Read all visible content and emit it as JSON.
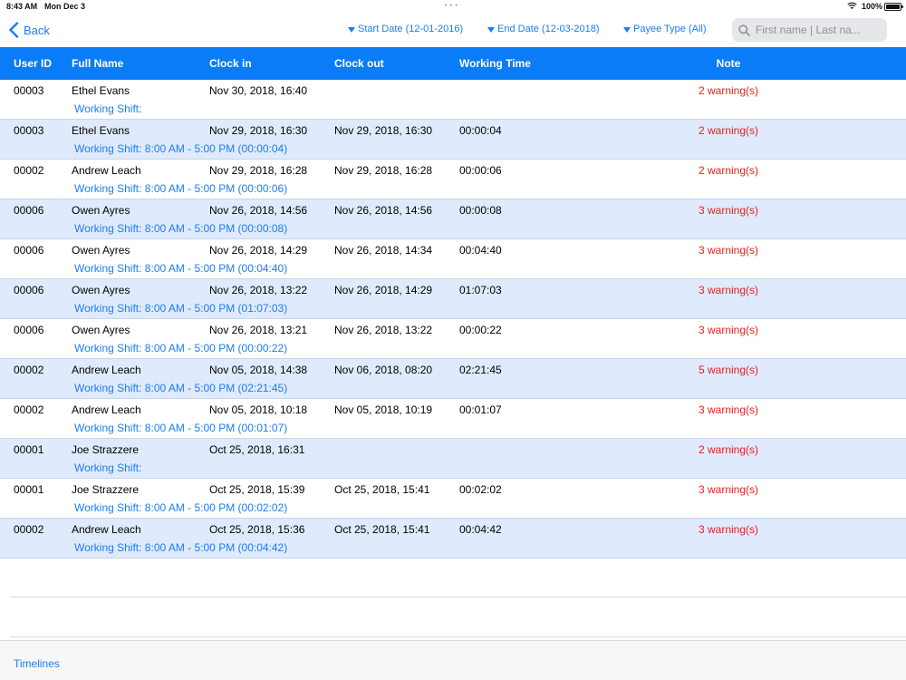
{
  "status_bar": {
    "time": "8:43 AM",
    "date": "Mon Dec 3",
    "battery": "100%"
  },
  "nav": {
    "back_label": "Back",
    "start_date": "Start Date (12-01-2016)",
    "end_date": "End Date (12-03-2018)",
    "payee_type": "Payee Type (All)",
    "search_placeholder": "First name | Last na..."
  },
  "table": {
    "columns": [
      "User ID",
      "Full Name",
      "Clock in",
      "Clock out",
      "Working Time",
      "Note"
    ],
    "rows": [
      {
        "user_id": "00003",
        "full_name": "Ethel Evans",
        "clock_in": "Nov 30, 2018, 16:40",
        "clock_out": "",
        "working_time": "",
        "note": "2 warning(s)",
        "shift": "Working Shift:"
      },
      {
        "user_id": "00003",
        "full_name": "Ethel Evans",
        "clock_in": "Nov 29, 2018, 16:30",
        "clock_out": "Nov 29, 2018, 16:30",
        "working_time": "00:00:04",
        "note": "2 warning(s)",
        "shift": "Working Shift:  8:00 AM - 5:00 PM (00:00:04)"
      },
      {
        "user_id": "00002",
        "full_name": "Andrew Leach",
        "clock_in": "Nov 29, 2018, 16:28",
        "clock_out": "Nov 29, 2018, 16:28",
        "working_time": "00:00:06",
        "note": "2 warning(s)",
        "shift": "Working Shift:  8:00 AM - 5:00 PM (00:00:06)"
      },
      {
        "user_id": "00006",
        "full_name": "Owen Ayres",
        "clock_in": "Nov 26, 2018, 14:56",
        "clock_out": "Nov 26, 2018, 14:56",
        "working_time": "00:00:08",
        "note": "3 warning(s)",
        "shift": "Working Shift:  8:00 AM - 5:00 PM (00:00:08)"
      },
      {
        "user_id": "00006",
        "full_name": "Owen Ayres",
        "clock_in": "Nov 26, 2018, 14:29",
        "clock_out": "Nov 26, 2018, 14:34",
        "working_time": "00:04:40",
        "note": "3 warning(s)",
        "shift": "Working Shift:  8:00 AM - 5:00 PM (00:04:40)"
      },
      {
        "user_id": "00006",
        "full_name": "Owen Ayres",
        "clock_in": "Nov 26, 2018, 13:22",
        "clock_out": "Nov 26, 2018, 14:29",
        "working_time": "01:07:03",
        "note": "3 warning(s)",
        "shift": "Working Shift:  8:00 AM - 5:00 PM (01:07:03)"
      },
      {
        "user_id": "00006",
        "full_name": "Owen Ayres",
        "clock_in": "Nov 26, 2018, 13:21",
        "clock_out": "Nov 26, 2018, 13:22",
        "working_time": "00:00:22",
        "note": "3 warning(s)",
        "shift": "Working Shift:  8:00 AM - 5:00 PM (00:00:22)"
      },
      {
        "user_id": "00002",
        "full_name": "Andrew Leach",
        "clock_in": "Nov 05, 2018, 14:38",
        "clock_out": "Nov 06, 2018, 08:20",
        "working_time": "02:21:45",
        "note": "5 warning(s)",
        "shift": "Working Shift:  8:00 AM - 5:00 PM (02:21:45)"
      },
      {
        "user_id": "00002",
        "full_name": "Andrew Leach",
        "clock_in": "Nov 05, 2018, 10:18",
        "clock_out": "Nov 05, 2018, 10:19",
        "working_time": "00:01:07",
        "note": "3 warning(s)",
        "shift": "Working Shift:  8:00 AM - 5:00 PM (00:01:07)"
      },
      {
        "user_id": "00001",
        "full_name": "Joe Strazzere",
        "clock_in": "Oct 25, 2018, 16:31",
        "clock_out": "",
        "working_time": "",
        "note": "2 warning(s)",
        "shift": "Working Shift:"
      },
      {
        "user_id": "00001",
        "full_name": "Joe Strazzere",
        "clock_in": "Oct 25, 2018, 15:39",
        "clock_out": "Oct 25, 2018, 15:41",
        "working_time": "00:02:02",
        "note": "3 warning(s)",
        "shift": "Working Shift:  8:00 AM - 5:00 PM (00:02:02)"
      },
      {
        "user_id": "00002",
        "full_name": "Andrew Leach",
        "clock_in": "Oct 25, 2018, 15:36",
        "clock_out": "Oct 25, 2018, 15:41",
        "working_time": "00:04:42",
        "note": "3 warning(s)",
        "shift": "Working Shift:  8:00 AM - 5:00 PM (00:04:42)"
      }
    ]
  },
  "footer": {
    "timelines_label": "Timelines"
  },
  "colors": {
    "accent": "#1a7ef2",
    "header_bg": "#0a7cf8",
    "row_alt_bg": "#dfeafc",
    "warning": "#ea1d1d"
  },
  "icons": [
    "back-chevron-icon",
    "caret-down-icon",
    "search-icon",
    "wifi-icon",
    "battery-icon"
  ]
}
